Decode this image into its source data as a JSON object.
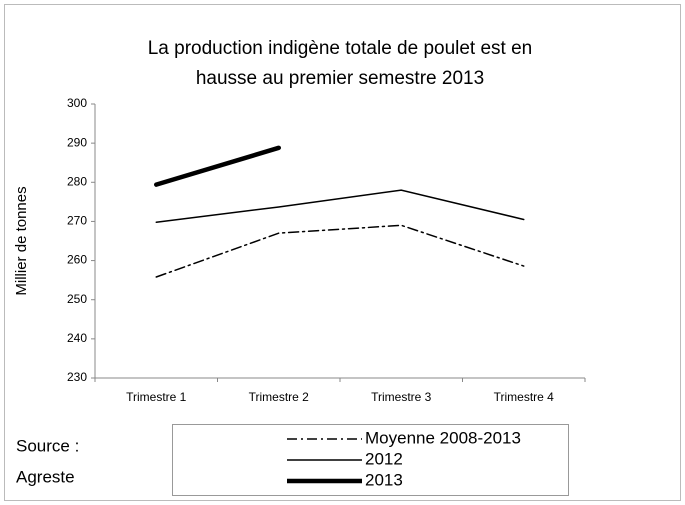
{
  "chart_data": {
    "type": "line",
    "title": [
      "La production indigène totale de poulet est en",
      "hausse au premier semestre 2013"
    ],
    "y_label": "Millier de tonnes",
    "source": [
      "Source :",
      "Agreste"
    ],
    "categories": [
      "Trimestre 1",
      "Trimestre 2",
      "Trimestre 3",
      "Trimestre 4"
    ],
    "series": [
      {
        "name": "Moyenne 2008-2013",
        "color": "#000000",
        "dash": "10 4 2 4",
        "line_width": 1.5,
        "values": [
          255.8,
          267,
          269,
          258.6
        ]
      },
      {
        "name": "2012",
        "color": "#000000",
        "dash": "none",
        "line_width": 1.5,
        "values": [
          269.8,
          273.7,
          278,
          270.5
        ]
      },
      {
        "name": "2013",
        "color": "#000000",
        "dash": "none",
        "line_width": 4.5,
        "values": [
          279.4,
          288.8,
          null,
          null
        ]
      }
    ],
    "ylim": [
      230,
      300
    ],
    "yticks": [
      230,
      240,
      250,
      260,
      270,
      280,
      290,
      300
    ],
    "grid": false
  }
}
